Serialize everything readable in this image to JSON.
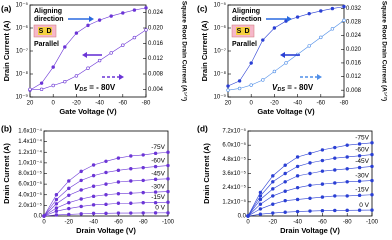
{
  "chart_data": [
    {
      "type": "line",
      "label": "(a)",
      "xlabel": "Gate Voltage (V)",
      "ylabel": "Drain Current (A)",
      "y2label": "Square Root Drain Current (A¹ᐟ²)",
      "x": [
        20,
        10,
        0,
        -10,
        -20,
        -30,
        -40,
        -50,
        -60,
        -70,
        -80
      ],
      "xlim": [
        20,
        -80
      ],
      "xticks": [
        20,
        0,
        -20,
        -40,
        -60,
        -80
      ],
      "log_y": true,
      "ylim": [
        1e-09,
        1e-05
      ],
      "yticks": [
        {
          "value": 1e-09,
          "label": "10⁻⁹"
        },
        {
          "value": 1e-08,
          "label": "10⁻⁸"
        },
        {
          "value": 1e-07,
          "label": "10⁻⁷"
        },
        {
          "value": 1e-06,
          "label": "10⁻⁶"
        },
        {
          "value": 1e-05,
          "label": "10⁻⁵"
        }
      ],
      "y2lim": [
        0.002,
        0.026
      ],
      "y2ticks": [
        0.004,
        0.008,
        0.012,
        0.016,
        {
          "value": 0.02,
          "label": "0.020"
        },
        0.024
      ],
      "series": [
        {
          "color": "#6b35d6",
          "marker": "filled",
          "values": [
            2e-09,
            4e-09,
            2e-08,
            1.5e-07,
            6e-07,
            1.3e-06,
            2.2e-06,
            3.3e-06,
            4.5e-06,
            6e-06,
            7.5e-06
          ]
        },
        {
          "color": "#6b35d6",
          "marker": "open",
          "axis": "y2",
          "values": [
            0.004,
            0.004,
            0.005,
            0.006,
            0.0075,
            0.0095,
            0.0115,
            0.0135,
            0.0155,
            0.0175,
            0.0195
          ]
        }
      ],
      "annotations": {
        "line1": "Aligning",
        "line2": "direction",
        "source": "S",
        "drain": "D",
        "orientation": "Parallel",
        "vds": "V",
        "vds_sub": "DS",
        "vds_value": " = - 80V"
      }
    },
    {
      "type": "line",
      "label": "(b)",
      "xlabel": "Drain Voltage (V)",
      "ylabel": "Drain Current (A)",
      "x": [
        0,
        -10,
        -20,
        -30,
        -40,
        -50,
        -60,
        -70,
        -80,
        -90,
        -100
      ],
      "xlim": [
        0,
        -100
      ],
      "xticks": [
        0,
        -20,
        -40,
        -60,
        -80,
        -100
      ],
      "ylim": [
        0,
        0.00016
      ],
      "yticks": [
        {
          "value": 0,
          "label": "0.0"
        },
        {
          "value": 2e-05,
          "label": "2.0x10⁻⁵"
        },
        {
          "value": 4e-05,
          "label": "4.0x10⁻⁵"
        },
        {
          "value": 6e-05,
          "label": "6.0x10⁻⁵"
        },
        {
          "value": 8e-05,
          "label": "8.0x10⁻⁵"
        },
        {
          "value": 0.0001,
          "label": "1.0x10⁻⁴"
        },
        {
          "value": 0.00012,
          "label": "1.2x10⁻⁴"
        },
        {
          "value": 0.00014,
          "label": "1.4x10⁻⁴"
        },
        {
          "value": 0.00016,
          "label": "1.6x10⁻⁴"
        }
      ],
      "series": [
        {
          "name": "-75V",
          "color": "#6b35d6",
          "marker": "filled",
          "values": [
            0,
            4e-05,
            6.6e-05,
            8.4e-05,
            9.6e-05,
            0.000103,
            0.000109,
            0.000113,
            0.000115,
            0.000118,
            0.00012
          ]
        },
        {
          "name": "-60V",
          "color": "#6b35d6",
          "marker": "filled",
          "values": [
            0,
            3.1e-05,
            5.2e-05,
            6.7e-05,
            7.6e-05,
            8.2e-05,
            8.6e-05,
            8.9e-05,
            9.1e-05,
            9.3e-05,
            9.5e-05
          ]
        },
        {
          "name": "-45V",
          "color": "#6b35d6",
          "marker": "filled",
          "values": [
            0,
            2.3e-05,
            3.9e-05,
            4.9e-05,
            5.6e-05,
            6e-05,
            6.4e-05,
            6.6e-05,
            6.7e-05,
            6.9e-05,
            7e-05
          ]
        },
        {
          "name": "-30V",
          "color": "#6b35d6",
          "marker": "filled",
          "values": [
            0,
            1.5e-05,
            2.5e-05,
            3.2e-05,
            3.7e-05,
            4e-05,
            4.2e-05,
            4.3e-05,
            4.4e-05,
            4.5e-05,
            4.6e-05
          ]
        },
        {
          "name": "-15V",
          "color": "#6b35d6",
          "marker": "filled",
          "values": [
            0,
            9e-06,
            1.4e-05,
            1.8e-05,
            2.1e-05,
            2.2e-05,
            2.4e-05,
            2.4e-05,
            2.5e-05,
            2.5e-05,
            2.6e-05
          ]
        },
        {
          "name": "0 V",
          "color": "#6b35d6",
          "marker": "filled",
          "values": [
            0,
            2e-06,
            3e-06,
            4e-06,
            5e-06,
            5e-06,
            5.5e-06,
            5.6e-06,
            5.8e-06,
            5.9e-06,
            6e-06
          ]
        }
      ]
    },
    {
      "type": "line",
      "label": "(c)",
      "xlabel": "Gate Voltage (V)",
      "ylabel": "Drain Current (A)",
      "y2label": "Square Root Drain Current (A¹ᐟ²)",
      "x": [
        20,
        10,
        0,
        -10,
        -20,
        -30,
        -40,
        -50,
        -60,
        -70,
        -80
      ],
      "xlim": [
        20,
        -80
      ],
      "xticks": [
        20,
        0,
        -20,
        -40,
        -60,
        -80
      ],
      "log_y": true,
      "ylim": [
        1e-09,
        1e-05
      ],
      "yticks": [
        {
          "value": 1e-09,
          "label": "10⁻⁹"
        },
        {
          "value": 1e-08,
          "label": "10⁻⁸"
        },
        {
          "value": 1e-07,
          "label": "10⁻⁷"
        },
        {
          "value": 1e-06,
          "label": "10⁻⁶"
        },
        {
          "value": 1e-05,
          "label": "10⁻⁵"
        }
      ],
      "y2lim": [
        0.006,
        0.033
      ],
      "y2ticks": [
        0.008,
        0.012,
        0.016,
        {
          "value": 0.02,
          "label": "0.020"
        },
        0.024,
        0.028,
        0.032
      ],
      "series": [
        {
          "color": "#2a3fd4",
          "marker": "filled",
          "values": [
            3e-09,
            5e-09,
            3e-08,
            3e-07,
            1e-06,
            2e-06,
            3e-06,
            4.2e-06,
            5.5e-06,
            7e-06,
            8.5e-06
          ]
        },
        {
          "color": "#4f8ee8",
          "marker": "open",
          "axis": "y2",
          "values": [
            0.008,
            0.0085,
            0.0095,
            0.011,
            0.0135,
            0.016,
            0.0185,
            0.021,
            0.0235,
            0.026,
            0.0285
          ]
        }
      ],
      "annotations": {
        "line1": "Aligning",
        "line2": "direction",
        "source": "S",
        "drain": "D",
        "orientation": "Parallel",
        "vds": "V",
        "vds_sub": "DS",
        "vds_value": " = - 80V"
      }
    },
    {
      "type": "line",
      "label": "(d)",
      "xlabel": "Drain Voltage (V)",
      "ylabel": "Drain Current (A)",
      "x": [
        0,
        -10,
        -20,
        -30,
        -40,
        -50,
        -60,
        -70,
        -80,
        -90,
        -100
      ],
      "xlim": [
        0,
        -100
      ],
      "xticks": [
        0,
        -20,
        -40,
        -60,
        -80,
        -100
      ],
      "ylim": [
        0,
        7.2e-05
      ],
      "yticks": [
        {
          "value": 0,
          "label": "0.0"
        },
        {
          "value": 1.2e-05,
          "label": "1.2x10⁻⁵"
        },
        {
          "value": 2.4e-05,
          "label": "2.4x10⁻⁵"
        },
        {
          "value": 3.6e-05,
          "label": "3.6x10⁻⁵"
        },
        {
          "value": 4.8e-05,
          "label": "4.8x10⁻⁵"
        },
        {
          "value": 6e-05,
          "label": "6.0x10⁻⁵"
        },
        {
          "value": 7.2e-05,
          "label": "7.2x10⁻⁵"
        }
      ],
      "series": [
        {
          "name": "-75V",
          "color": "#2a3fd4",
          "marker": "filled",
          "values": [
            0,
            2e-05,
            3.4e-05,
            4.3e-05,
            5e-05,
            5.3e-05,
            5.6e-05,
            5.8e-05,
            6e-05,
            6.1e-05,
            6.2e-05
          ]
        },
        {
          "name": "-60V",
          "color": "#2a3fd4",
          "marker": "filled",
          "values": [
            0,
            1.7e-05,
            2.9e-05,
            3.6e-05,
            4.2e-05,
            4.5e-05,
            4.7e-05,
            4.9e-05,
            5e-05,
            5.1e-05,
            5.2e-05
          ]
        },
        {
          "name": "-45V",
          "color": "#2a3fd4",
          "marker": "filled",
          "values": [
            0,
            1.4e-05,
            2.3e-05,
            2.9e-05,
            3.4e-05,
            3.6e-05,
            3.8e-05,
            3.9e-05,
            4e-05,
            4.1e-05,
            4.2e-05
          ]
        },
        {
          "name": "-30V",
          "color": "#2a3fd4",
          "marker": "filled",
          "values": [
            0,
            1e-05,
            1.7e-05,
            2.1e-05,
            2.4e-05,
            2.6e-05,
            2.7e-05,
            2.8e-05,
            2.9e-05,
            2.95e-05,
            3e-05
          ]
        },
        {
          "name": "-15V",
          "color": "#2a3fd4",
          "marker": "filled",
          "values": [
            0,
            6e-06,
            1e-05,
            1.3e-05,
            1.4e-05,
            1.5e-05,
            1.6e-05,
            1.7e-05,
            1.7e-05,
            1.75e-05,
            1.8e-05
          ]
        },
        {
          "name": "0 V",
          "color": "#2a3fd4",
          "marker": "filled",
          "values": [
            0,
            1.5e-06,
            2.5e-06,
            3.2e-06,
            3.8e-06,
            4.2e-06,
            4.5e-06,
            4.7e-06,
            4.8e-06,
            4.9e-06,
            5e-06
          ]
        }
      ]
    }
  ]
}
